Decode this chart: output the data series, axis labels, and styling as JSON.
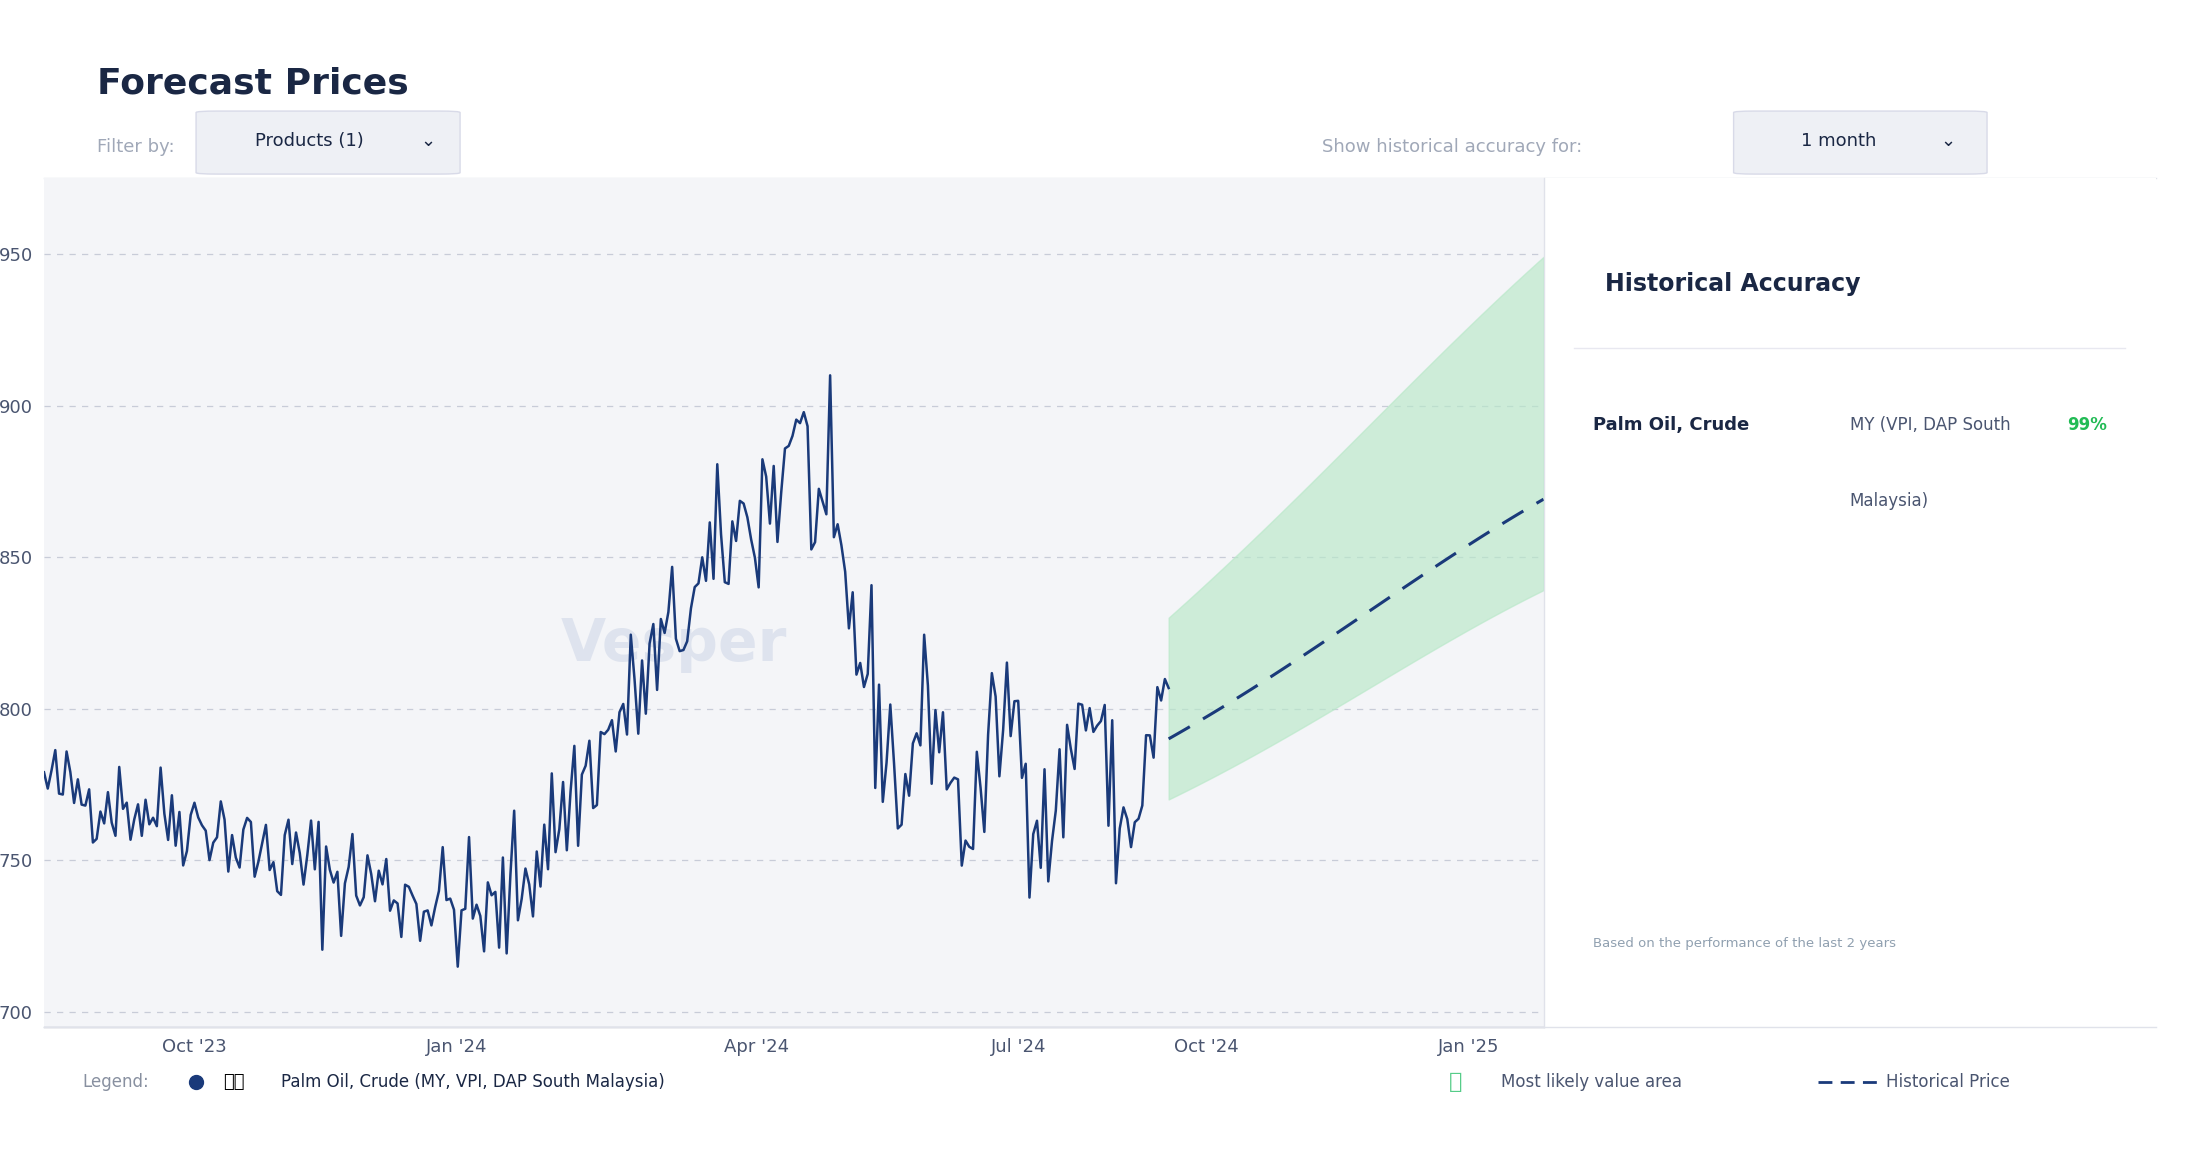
{
  "title": "Forecast Prices",
  "filter_label": "Filter by:",
  "filter_value": "Products (1)",
  "historical_accuracy_label": "Show historical accuracy for:",
  "historical_accuracy_value": "1 month",
  "right_panel_title": "Historical Accuracy",
  "right_panel_product": "Palm Oil, Crude",
  "right_panel_location": "MY (VPI, DAP South 99%",
  "right_panel_location2": "Malaysia)",
  "right_panel_accuracy": "99%",
  "based_on_text": "Based on the performance of the last 2 years",
  "legend_label": "Palm Oil, Crude (MY, VPI, DAP South Malaysia)",
  "legend_likely_label": "Most likely value area",
  "legend_historical_label": "Historical Price",
  "yticks": [
    700,
    750,
    800,
    850,
    900,
    950
  ],
  "xtick_labels": [
    "Oct '23",
    "Jan '24",
    "Apr '24",
    "Jul '24",
    "Oct '24",
    "Jan '25"
  ],
  "xtick_pos": [
    40,
    110,
    190,
    260,
    310,
    380
  ],
  "bg_color": "#f4f5f8",
  "line_color": "#1a3a7a",
  "forecast_line_color": "#1a3a7a",
  "band_color": "#b8e8c8",
  "grid_color": "#c8ccd8",
  "title_color": "#1a2744",
  "label_color": "#8890a0",
  "watermark_color": "#d0d8e8",
  "n_hist": 300,
  "n_fore": 100,
  "xlim": [
    0,
    400
  ],
  "ylim": [
    695,
    975
  ]
}
